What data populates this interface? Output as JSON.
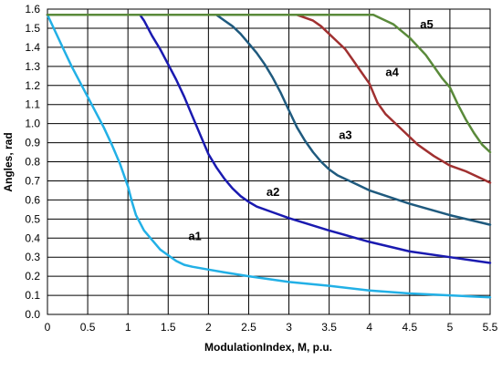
{
  "chart_data": {
    "type": "line",
    "title": "",
    "xlabel": "ModulationIndex, M, p.u.",
    "ylabel": "Angles, rad",
    "xlim": [
      0,
      5.5
    ],
    "ylim": [
      0,
      1.6
    ],
    "grid": true,
    "legend": "none",
    "xticks": [
      "0",
      "0.5",
      "1",
      "1.5",
      "2",
      "2.5",
      "3",
      "3.5",
      "4",
      "4.5",
      "5",
      "5.5"
    ],
    "yticks": [
      "0.0",
      "0.1",
      "0.2",
      "0.3",
      "0.4",
      "0.5",
      "0.6",
      "0.7",
      "0.8",
      "0.9",
      "1.0",
      "1.1",
      "1.2",
      "1.3",
      "1.4",
      "1.5",
      "1.6"
    ],
    "series": [
      {
        "name": "a1",
        "color": "#22b0e6",
        "label_at": [
          1.75,
          0.39
        ],
        "points": [
          [
            0,
            1.57
          ],
          [
            0.1,
            1.48
          ],
          [
            0.2,
            1.39
          ],
          [
            0.3,
            1.3
          ],
          [
            0.4,
            1.22
          ],
          [
            0.5,
            1.14
          ],
          [
            0.6,
            1.06
          ],
          [
            0.7,
            0.98
          ],
          [
            0.8,
            0.89
          ],
          [
            0.9,
            0.79
          ],
          [
            1.0,
            0.67
          ],
          [
            1.05,
            0.59
          ],
          [
            1.1,
            0.52
          ],
          [
            1.2,
            0.44
          ],
          [
            1.3,
            0.39
          ],
          [
            1.4,
            0.34
          ],
          [
            1.5,
            0.31
          ],
          [
            1.6,
            0.28
          ],
          [
            1.7,
            0.26
          ],
          [
            1.8,
            0.25
          ],
          [
            2.0,
            0.235
          ],
          [
            2.2,
            0.22
          ],
          [
            2.5,
            0.2
          ],
          [
            3.0,
            0.17
          ],
          [
            3.5,
            0.15
          ],
          [
            4.0,
            0.125
          ],
          [
            4.5,
            0.11
          ],
          [
            5.0,
            0.1
          ],
          [
            5.5,
            0.09
          ]
        ]
      },
      {
        "name": "a2",
        "color": "#1a1ab0",
        "label_at": [
          2.72,
          0.62
        ],
        "points": [
          [
            0,
            1.57
          ],
          [
            1.15,
            1.57
          ],
          [
            1.2,
            1.54
          ],
          [
            1.3,
            1.46
          ],
          [
            1.4,
            1.39
          ],
          [
            1.5,
            1.31
          ],
          [
            1.6,
            1.23
          ],
          [
            1.7,
            1.14
          ],
          [
            1.8,
            1.04
          ],
          [
            1.9,
            0.94
          ],
          [
            2.0,
            0.84
          ],
          [
            2.1,
            0.77
          ],
          [
            2.2,
            0.71
          ],
          [
            2.3,
            0.66
          ],
          [
            2.4,
            0.62
          ],
          [
            2.5,
            0.59
          ],
          [
            2.6,
            0.565
          ],
          [
            2.8,
            0.535
          ],
          [
            3.0,
            0.505
          ],
          [
            3.5,
            0.44
          ],
          [
            4.0,
            0.38
          ],
          [
            4.5,
            0.33
          ],
          [
            5.0,
            0.3
          ],
          [
            5.5,
            0.27
          ]
        ]
      },
      {
        "name": "a3",
        "color": "#1f5a7e",
        "label_at": [
          3.62,
          0.92
        ],
        "points": [
          [
            0,
            1.57
          ],
          [
            2.1,
            1.57
          ],
          [
            2.2,
            1.54
          ],
          [
            2.3,
            1.51
          ],
          [
            2.4,
            1.47
          ],
          [
            2.5,
            1.42
          ],
          [
            2.6,
            1.37
          ],
          [
            2.7,
            1.31
          ],
          [
            2.8,
            1.24
          ],
          [
            2.9,
            1.16
          ],
          [
            3.0,
            1.07
          ],
          [
            3.1,
            0.98
          ],
          [
            3.2,
            0.91
          ],
          [
            3.3,
            0.85
          ],
          [
            3.4,
            0.8
          ],
          [
            3.5,
            0.76
          ],
          [
            3.6,
            0.73
          ],
          [
            3.8,
            0.69
          ],
          [
            4.0,
            0.65
          ],
          [
            4.5,
            0.58
          ],
          [
            5.0,
            0.52
          ],
          [
            5.5,
            0.47
          ]
        ]
      },
      {
        "name": "a4",
        "color": "#a03030",
        "label_at": [
          4.2,
          1.25
        ],
        "points": [
          [
            0,
            1.57
          ],
          [
            3.1,
            1.57
          ],
          [
            3.3,
            1.54
          ],
          [
            3.4,
            1.51
          ],
          [
            3.5,
            1.47
          ],
          [
            3.6,
            1.43
          ],
          [
            3.7,
            1.39
          ],
          [
            3.8,
            1.33
          ],
          [
            3.9,
            1.27
          ],
          [
            4.0,
            1.21
          ],
          [
            4.1,
            1.11
          ],
          [
            4.2,
            1.05
          ],
          [
            4.4,
            0.97
          ],
          [
            4.6,
            0.89
          ],
          [
            4.8,
            0.83
          ],
          [
            5.0,
            0.78
          ],
          [
            5.2,
            0.75
          ],
          [
            5.4,
            0.71
          ],
          [
            5.5,
            0.69
          ]
        ]
      },
      {
        "name": "a5",
        "color": "#5a8a3a",
        "label_at": [
          4.63,
          1.5
        ],
        "points": [
          [
            0,
            1.57
          ],
          [
            4.05,
            1.57
          ],
          [
            4.1,
            1.56
          ],
          [
            4.3,
            1.52
          ],
          [
            4.5,
            1.45
          ],
          [
            4.7,
            1.36
          ],
          [
            4.9,
            1.24
          ],
          [
            5.0,
            1.19
          ],
          [
            5.1,
            1.1
          ],
          [
            5.2,
            1.02
          ],
          [
            5.3,
            0.95
          ],
          [
            5.4,
            0.89
          ],
          [
            5.5,
            0.85
          ]
        ]
      }
    ]
  }
}
